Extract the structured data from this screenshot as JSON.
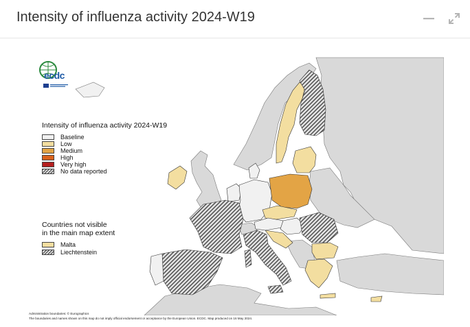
{
  "header": {
    "title": "Intensity of influenza activity 2024-W19",
    "minimize_icon": "minus-icon",
    "expand_icon": "expand-arrows-icon"
  },
  "logo": {
    "text": "ecdc"
  },
  "legend": {
    "title": "Intensity of influenza activity 2024-W19",
    "items": [
      {
        "label": "Baseline",
        "color": "#f1f1f1"
      },
      {
        "label": "Low",
        "color": "#f3dea0"
      },
      {
        "label": "Medium",
        "color": "#e3a445"
      },
      {
        "label": "High",
        "color": "#d9621c"
      },
      {
        "label": "Very high",
        "color": "#b41f1f"
      },
      {
        "label": "No data reported",
        "color": "hatched"
      }
    ]
  },
  "legend_small": {
    "title_line1": "Countries not visible",
    "title_line2": "in the main map extent",
    "items": [
      {
        "label": "Malta",
        "color": "#f3dea0"
      },
      {
        "label": "Liechtenstein",
        "color": "hatched"
      }
    ]
  },
  "footnotes": {
    "line1": "Administration boundaries: © Eurographics",
    "line2": "The boundaries and names shown on this map do not imply official endorsement or acceptance by the European Union. ECDC. Map produced on 16 May 2024."
  },
  "colors": {
    "sea": "#ffffff",
    "non_eu": "#d9d9d9",
    "baseline": "#f1f1f1",
    "low": "#f3dea0",
    "medium": "#e3a445",
    "border": "#333333"
  }
}
